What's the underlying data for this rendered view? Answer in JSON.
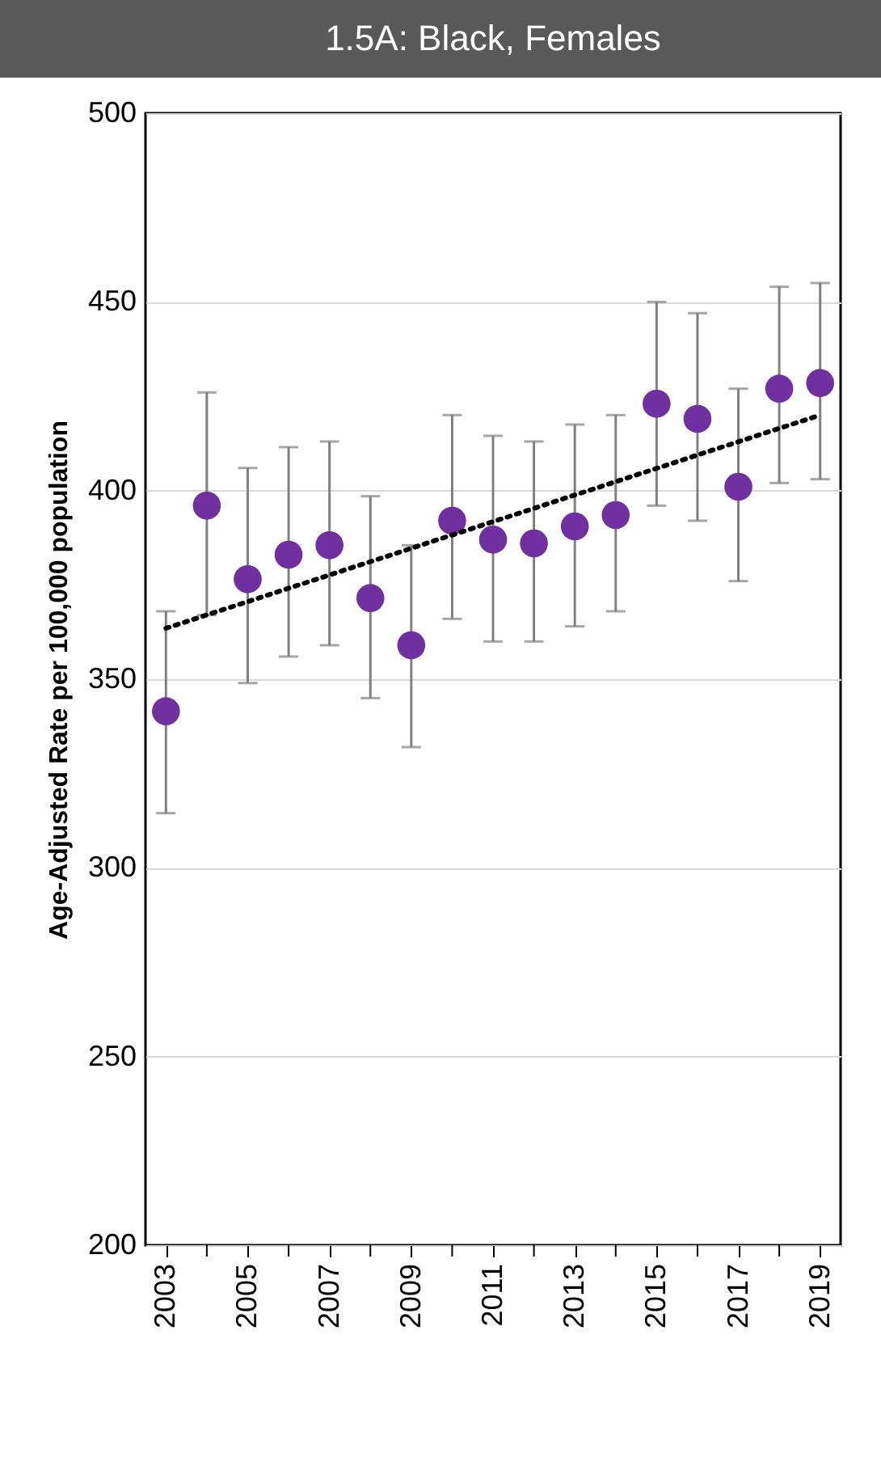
{
  "chart_data": {
    "type": "scatter",
    "title": "1.5A: Black, Females",
    "ylabel": "Age-Adjusted Rate per 100,000 population",
    "x": [
      2003,
      2004,
      2005,
      2006,
      2007,
      2008,
      2009,
      2010,
      2011,
      2012,
      2013,
      2014,
      2015,
      2016,
      2017,
      2018,
      2019
    ],
    "xlim": [
      2002.5,
      2019.5
    ],
    "xticks": [
      2003,
      {
        "value": 2004,
        "label": null
      },
      2005,
      {
        "value": 2006,
        "label": null
      },
      2007,
      {
        "value": 2008,
        "label": null
      },
      2009,
      {
        "value": 2010,
        "label": null
      },
      2011,
      {
        "value": 2012,
        "label": null
      },
      2013,
      {
        "value": 2014,
        "label": null
      },
      2015,
      {
        "value": 2016,
        "label": null
      },
      2017,
      {
        "value": 2018,
        "label": null
      },
      2019
    ],
    "ylim": [
      200,
      500
    ],
    "yticks": [
      200,
      250,
      300,
      350,
      400,
      450,
      500
    ],
    "grid": "y",
    "series": [
      {
        "type": "scatter",
        "color": "#7030a0",
        "marker": "circle",
        "values": [
          341.5,
          396,
          376.5,
          383,
          385.5,
          371.5,
          359,
          392,
          387,
          386,
          390.5,
          393.5,
          423,
          419,
          401,
          427,
          428.5
        ],
        "errors": [
          [
            314.5,
            368
          ],
          [
            367,
            426
          ],
          [
            349,
            406
          ],
          [
            356,
            411.5
          ],
          [
            359,
            413
          ],
          [
            345,
            398.5
          ],
          [
            332,
            385.5
          ],
          [
            366,
            420
          ],
          [
            360,
            414.5
          ],
          [
            360,
            413
          ],
          [
            364,
            417.5
          ],
          [
            368,
            420
          ],
          [
            396,
            450
          ],
          [
            392,
            447
          ],
          [
            376,
            427
          ],
          [
            402,
            454
          ],
          [
            403,
            455
          ]
        ]
      },
      {
        "type": "line",
        "color": "#000000",
        "line_style": "dotted",
        "x": [
          2003,
          2019
        ],
        "values": [
          363.5,
          420
        ]
      }
    ]
  }
}
